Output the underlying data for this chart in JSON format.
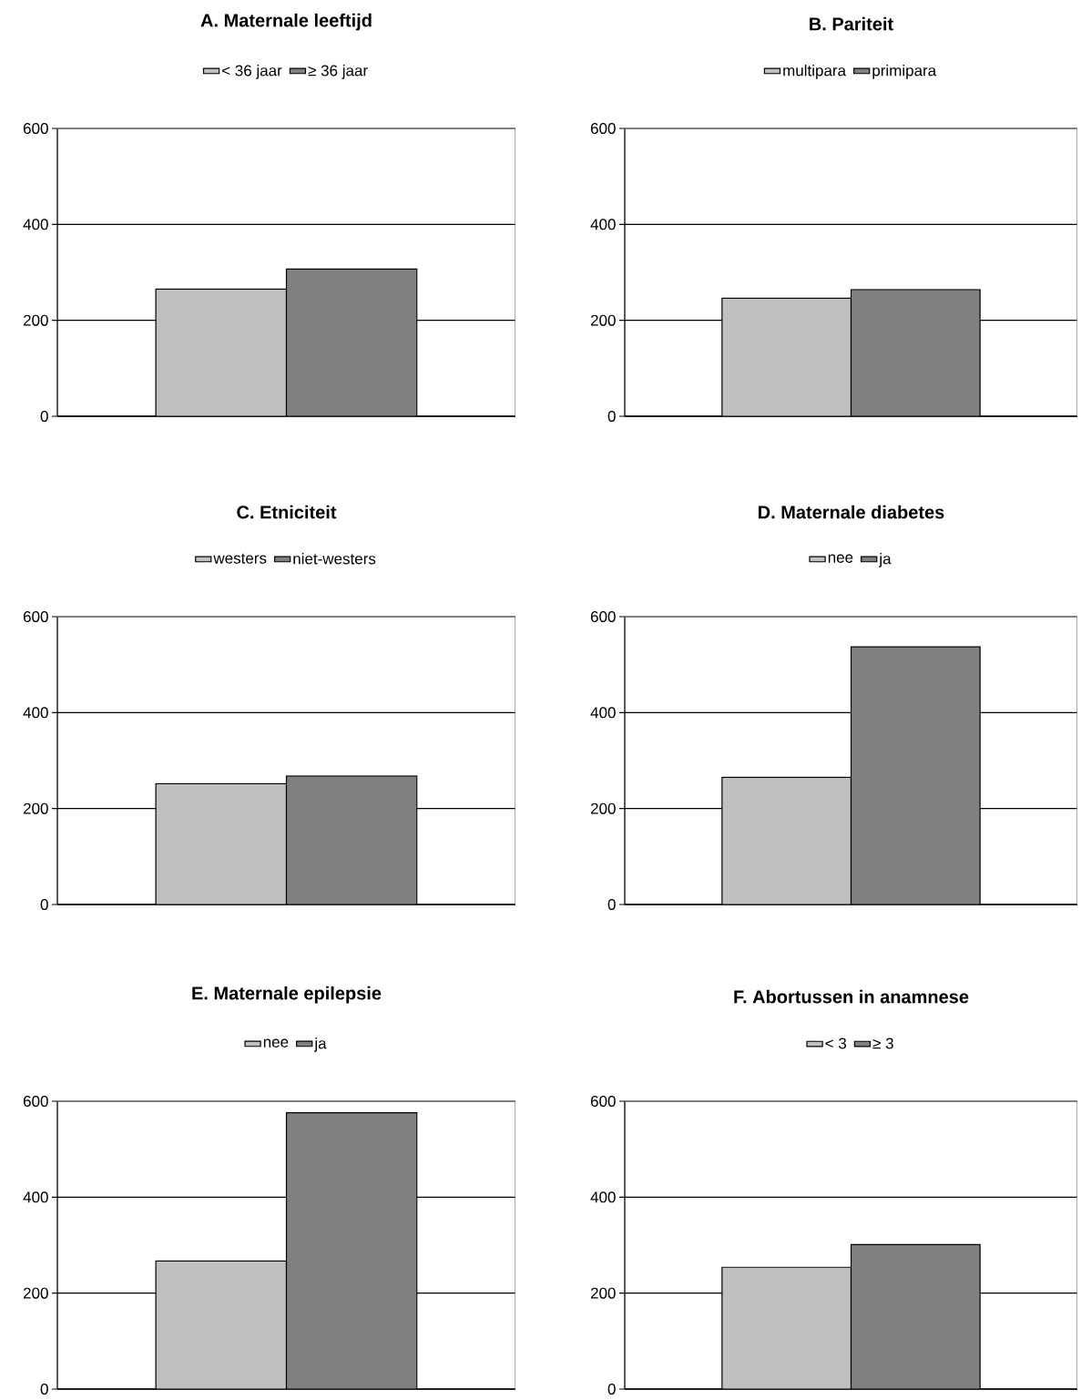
{
  "chart_data": [
    {
      "type": "bar",
      "title": "A. Maternale leeftijd",
      "categories": [
        null
      ],
      "series": [
        {
          "name": "< 36 jaar",
          "color": "#c0c0c0",
          "values": [
            265
          ]
        },
        {
          "name": "≥ 36 jaar",
          "color": "#808080",
          "values": [
            307
          ]
        }
      ],
      "ylim": [
        0,
        600
      ],
      "yticks": [
        0,
        200,
        400,
        600
      ],
      "grid": "y",
      "legend": "top",
      "tick_labels": "y"
    },
    {
      "type": "bar",
      "title": "B. Pariteit",
      "categories": [
        null
      ],
      "series": [
        {
          "name": "multipara",
          "color": "#c0c0c0",
          "values": [
            246
          ]
        },
        {
          "name": "primipara",
          "color": "#808080",
          "values": [
            264
          ]
        }
      ],
      "ylim": [
        0,
        600
      ],
      "yticks": [
        0,
        200,
        400,
        600
      ],
      "grid": "y",
      "legend": "top",
      "tick_labels": "y"
    },
    {
      "type": "bar",
      "title": "C. Etniciteit",
      "categories": [
        null
      ],
      "series": [
        {
          "name": "westers",
          "color": "#c0c0c0",
          "values": [
            252
          ]
        },
        {
          "name": "niet-westers",
          "color": "#808080",
          "values": [
            268
          ]
        }
      ],
      "ylim": [
        0,
        600
      ],
      "yticks": [
        0,
        200,
        400,
        600
      ],
      "grid": "y",
      "legend": "top",
      "tick_labels": "y"
    },
    {
      "type": "bar",
      "title": "D. Maternale diabetes",
      "categories": [
        null
      ],
      "series": [
        {
          "name": "nee",
          "color": "#c0c0c0",
          "values": [
            265
          ]
        },
        {
          "name": "ja",
          "color": "#808080",
          "values": [
            537
          ]
        }
      ],
      "ylim": [
        0,
        600
      ],
      "yticks": [
        0,
        200,
        400,
        600
      ],
      "grid": "y",
      "legend": "top",
      "tick_labels": "y"
    },
    {
      "type": "bar",
      "title": "E. Maternale epilepsie",
      "categories": [
        null
      ],
      "series": [
        {
          "name": "nee",
          "color": "#c0c0c0",
          "values": [
            267
          ]
        },
        {
          "name": "ja",
          "color": "#808080",
          "values": [
            576
          ]
        }
      ],
      "ylim": [
        0,
        600
      ],
      "yticks": [
        0,
        200,
        400,
        600
      ],
      "grid": "y",
      "legend": "top",
      "tick_labels": "y"
    },
    {
      "type": "bar",
      "title": "F. Abortussen in anamnese",
      "categories": [
        null
      ],
      "series": [
        {
          "name": "< 3",
          "color": "#c0c0c0",
          "values": [
            254
          ]
        },
        {
          "name": "≥ 3",
          "color": "#808080",
          "values": [
            301
          ]
        }
      ],
      "ylim": [
        0,
        600
      ],
      "yticks": [
        0,
        200,
        400,
        600
      ],
      "grid": "y",
      "legend": "top",
      "tick_labels": "y"
    }
  ]
}
